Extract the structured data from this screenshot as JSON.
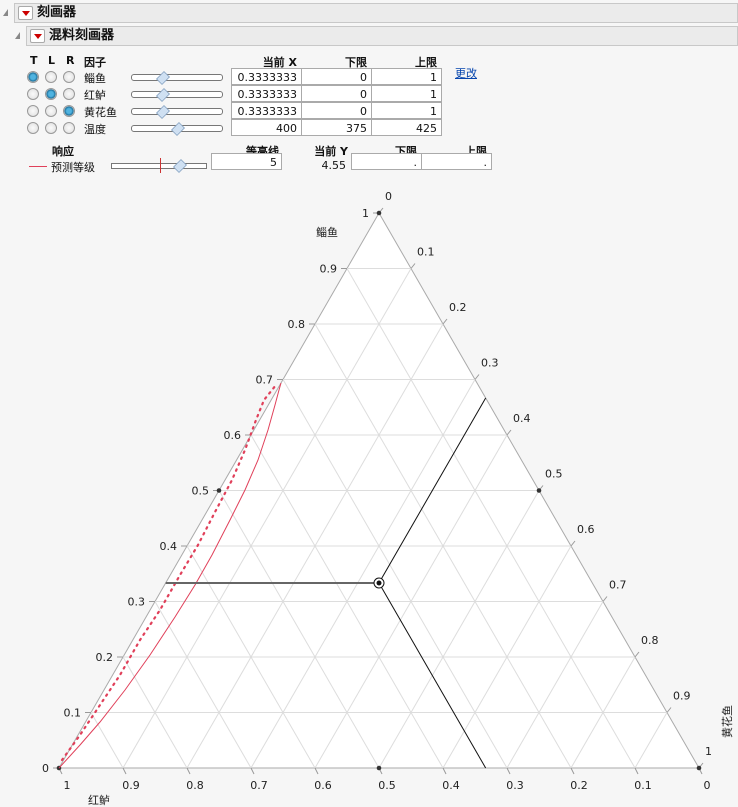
{
  "outline": {
    "title": "刻画器",
    "subtitle": "混料刻画器"
  },
  "factors": {
    "headers": {
      "t": "T",
      "l": "L",
      "r": "R",
      "factor": "因子",
      "current_x": "当前 X",
      "lower": "下限",
      "upper": "上限"
    },
    "change_link": "更改",
    "rows": [
      {
        "name": "鲻鱼",
        "selected": "T",
        "current": "0.3333333",
        "lower": "0",
        "upper": "1",
        "slider": 0.333
      },
      {
        "name": "红鲈",
        "selected": "L",
        "current": "0.3333333",
        "lower": "0",
        "upper": "1",
        "slider": 0.333
      },
      {
        "name": "黄花鱼",
        "selected": "R",
        "current": "0.3333333",
        "lower": "0",
        "upper": "1",
        "slider": 0.333
      },
      {
        "name": "温度",
        "selected": "",
        "current": "400",
        "lower": "375",
        "upper": "425",
        "slider": 0.5
      }
    ]
  },
  "response": {
    "headers": {
      "response": "响应",
      "contour": "等高线",
      "current_y": "当前 Y",
      "lower": "下限",
      "upper": "上限"
    },
    "name": "预测等级",
    "contour": "5",
    "current_y": "4.55",
    "lower": ".",
    "upper": ".",
    "color": "#e0405a"
  },
  "chart_data": {
    "type": "ternary",
    "axes": {
      "top": "鲻鱼",
      "left": "红鲈",
      "right": "黄花鱼"
    },
    "ticks": [
      "0",
      "0.1",
      "0.2",
      "0.3",
      "0.4",
      "0.5",
      "0.6",
      "0.7",
      "0.8",
      "0.9",
      "1"
    ],
    "current_point": {
      "鲻鱼": 0.3333333,
      "红鲈": 0.3333333,
      "黄花鱼": 0.3333333
    },
    "contour_level": 5,
    "contour_color": "#e0405a",
    "grid": true
  }
}
